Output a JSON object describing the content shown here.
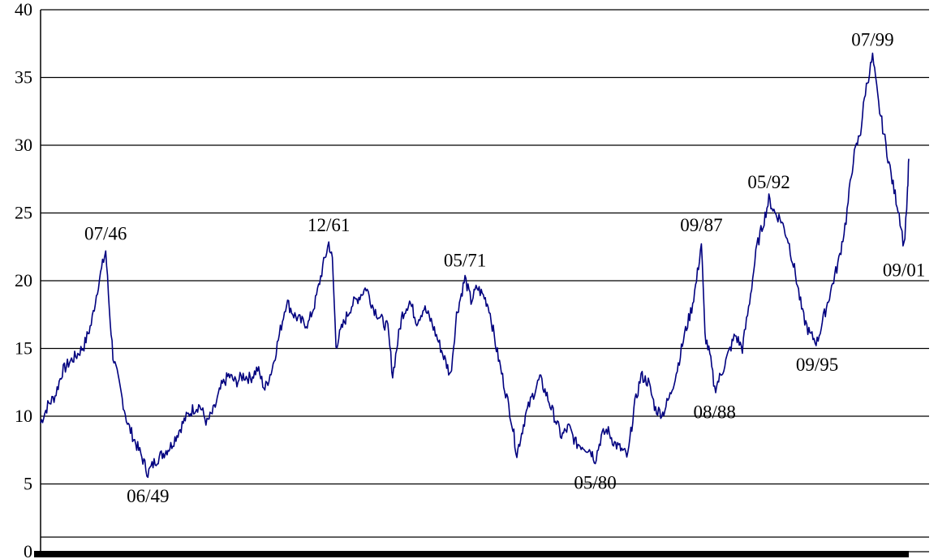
{
  "chart_data": {
    "type": "line",
    "title": "",
    "xlabel": "",
    "ylabel": "",
    "ylim": [
      0,
      40
    ],
    "yticks": [
      0,
      5,
      10,
      15,
      20,
      25,
      30,
      35,
      40
    ],
    "grid": true,
    "legend": "none",
    "series_color": "#00007f",
    "series": [
      {
        "points": [
          [
            "1942-01",
            9.5
          ],
          [
            "1942-07",
            10.8
          ],
          [
            "1943-01",
            11.5
          ],
          [
            "1943-07",
            13.3
          ],
          [
            "1944-01",
            14.0
          ],
          [
            "1944-07",
            14.5
          ],
          [
            "1945-01",
            15.2
          ],
          [
            "1945-07",
            16.8
          ],
          [
            "1946-01",
            19.8
          ],
          [
            "1946-07",
            22.2
          ],
          [
            "1946-10",
            18.0
          ],
          [
            "1947-01",
            14.5
          ],
          [
            "1947-07",
            12.0
          ],
          [
            "1948-01",
            9.5
          ],
          [
            "1948-07",
            8.2
          ],
          [
            "1949-01",
            7.0
          ],
          [
            "1949-06",
            5.8
          ],
          [
            "1949-12",
            6.7
          ],
          [
            "1950-06",
            7.2
          ],
          [
            "1951-01",
            7.8
          ],
          [
            "1951-07",
            8.8
          ],
          [
            "1952-01",
            9.8
          ],
          [
            "1952-07",
            10.5
          ],
          [
            "1953-01",
            10.8
          ],
          [
            "1953-07",
            9.5
          ],
          [
            "1954-01",
            10.5
          ],
          [
            "1954-07",
            12.2
          ],
          [
            "1955-01",
            13.0
          ],
          [
            "1955-07",
            12.5
          ],
          [
            "1956-01",
            13.0
          ],
          [
            "1956-07",
            12.8
          ],
          [
            "1957-01",
            13.5
          ],
          [
            "1957-07",
            12.0
          ],
          [
            "1958-01",
            13.5
          ],
          [
            "1958-07",
            16.0
          ],
          [
            "1959-01",
            18.5
          ],
          [
            "1959-07",
            17.5
          ],
          [
            "1960-01",
            17.0
          ],
          [
            "1960-07",
            16.8
          ],
          [
            "1961-01",
            18.5
          ],
          [
            "1961-07",
            21.0
          ],
          [
            "1961-12",
            22.8
          ],
          [
            "1962-03",
            21.5
          ],
          [
            "1962-06",
            15.2
          ],
          [
            "1962-09",
            16.0
          ],
          [
            "1963-01",
            17.0
          ],
          [
            "1963-07",
            18.2
          ],
          [
            "1964-01",
            18.8
          ],
          [
            "1964-07",
            19.5
          ],
          [
            "1965-01",
            18.0
          ],
          [
            "1965-07",
            17.2
          ],
          [
            "1966-01",
            16.5
          ],
          [
            "1966-05",
            13.0
          ],
          [
            "1966-10",
            16.0
          ],
          [
            "1967-01",
            17.5
          ],
          [
            "1967-07",
            18.5
          ],
          [
            "1968-01",
            17.0
          ],
          [
            "1968-07",
            18.0
          ],
          [
            "1969-01",
            17.0
          ],
          [
            "1969-07",
            15.5
          ],
          [
            "1970-01",
            14.0
          ],
          [
            "1970-05",
            13.0
          ],
          [
            "1970-10",
            17.5
          ],
          [
            "1971-05",
            20.2
          ],
          [
            "1971-10",
            18.5
          ],
          [
            "1972-03",
            19.5
          ],
          [
            "1972-09",
            18.8
          ],
          [
            "1973-01",
            18.0
          ],
          [
            "1973-07",
            15.0
          ],
          [
            "1974-01",
            12.5
          ],
          [
            "1974-07",
            10.0
          ],
          [
            "1974-12",
            7.2
          ],
          [
            "1975-07",
            10.0
          ],
          [
            "1976-01",
            11.5
          ],
          [
            "1976-07",
            12.8
          ],
          [
            "1977-01",
            11.5
          ],
          [
            "1977-07",
            10.0
          ],
          [
            "1978-01",
            8.5
          ],
          [
            "1978-07",
            9.2
          ],
          [
            "1979-01",
            8.0
          ],
          [
            "1979-07",
            7.8
          ],
          [
            "1980-01",
            7.5
          ],
          [
            "1980-05",
            6.8
          ],
          [
            "1980-10",
            8.5
          ],
          [
            "1981-03",
            9.0
          ],
          [
            "1981-09",
            8.0
          ],
          [
            "1982-03",
            7.5
          ],
          [
            "1982-08",
            7.0
          ],
          [
            "1983-01",
            10.5
          ],
          [
            "1983-07",
            13.0
          ],
          [
            "1984-01",
            12.5
          ],
          [
            "1984-07",
            10.5
          ],
          [
            "1985-01",
            10.2
          ],
          [
            "1985-07",
            11.5
          ],
          [
            "1986-01",
            13.5
          ],
          [
            "1986-07",
            16.0
          ],
          [
            "1987-01",
            18.0
          ],
          [
            "1987-05",
            20.0
          ],
          [
            "1987-09",
            22.8
          ],
          [
            "1987-12",
            16.0
          ],
          [
            "1988-04",
            14.5
          ],
          [
            "1988-08",
            12.0
          ],
          [
            "1989-01",
            13.0
          ],
          [
            "1989-07",
            14.5
          ],
          [
            "1990-01",
            16.0
          ],
          [
            "1990-07",
            15.0
          ],
          [
            "1991-01",
            18.5
          ],
          [
            "1991-07",
            22.5
          ],
          [
            "1992-01",
            24.5
          ],
          [
            "1992-05",
            26.0
          ],
          [
            "1992-10",
            25.0
          ],
          [
            "1993-03",
            24.5
          ],
          [
            "1993-09",
            23.0
          ],
          [
            "1994-03",
            20.5
          ],
          [
            "1994-09",
            17.5
          ],
          [
            "1995-03",
            16.0
          ],
          [
            "1995-09",
            15.5
          ],
          [
            "1996-03",
            17.5
          ],
          [
            "1996-09",
            19.5
          ],
          [
            "1997-03",
            21.5
          ],
          [
            "1997-09",
            24.5
          ],
          [
            "1998-03",
            29.0
          ],
          [
            "1998-09",
            31.0
          ],
          [
            "1999-01",
            34.0
          ],
          [
            "1999-07",
            36.5
          ],
          [
            "1999-12",
            33.0
          ],
          [
            "2000-06",
            30.0
          ],
          [
            "2000-12",
            27.0
          ],
          [
            "2001-05",
            25.0
          ],
          [
            "2001-09",
            22.5
          ],
          [
            "2001-12",
            26.5
          ],
          [
            "2002-01",
            29.0
          ]
        ]
      }
    ],
    "annotations": [
      {
        "text": "07/46",
        "x": "1946-07",
        "y": 22.2,
        "pos": "above"
      },
      {
        "text": "06/49",
        "x": "1949-06",
        "y": 5.8,
        "pos": "below"
      },
      {
        "text": "12/61",
        "x": "1961-12",
        "y": 22.8,
        "pos": "above"
      },
      {
        "text": "05/71",
        "x": "1971-05",
        "y": 20.2,
        "pos": "above"
      },
      {
        "text": "05/80",
        "x": "1980-05",
        "y": 6.8,
        "pos": "below"
      },
      {
        "text": "09/87",
        "x": "1987-09",
        "y": 22.8,
        "pos": "above"
      },
      {
        "text": "08/88",
        "x": "1988-08",
        "y": 12.0,
        "pos": "below"
      },
      {
        "text": "05/92",
        "x": "1992-05",
        "y": 26.0,
        "pos": "above"
      },
      {
        "text": "09/95",
        "x": "1995-09",
        "y": 15.5,
        "pos": "below"
      },
      {
        "text": "07/99",
        "x": "1999-07",
        "y": 36.5,
        "pos": "above"
      },
      {
        "text": "09/01",
        "x": "2001-09",
        "y": 22.5,
        "pos": "below"
      }
    ]
  }
}
